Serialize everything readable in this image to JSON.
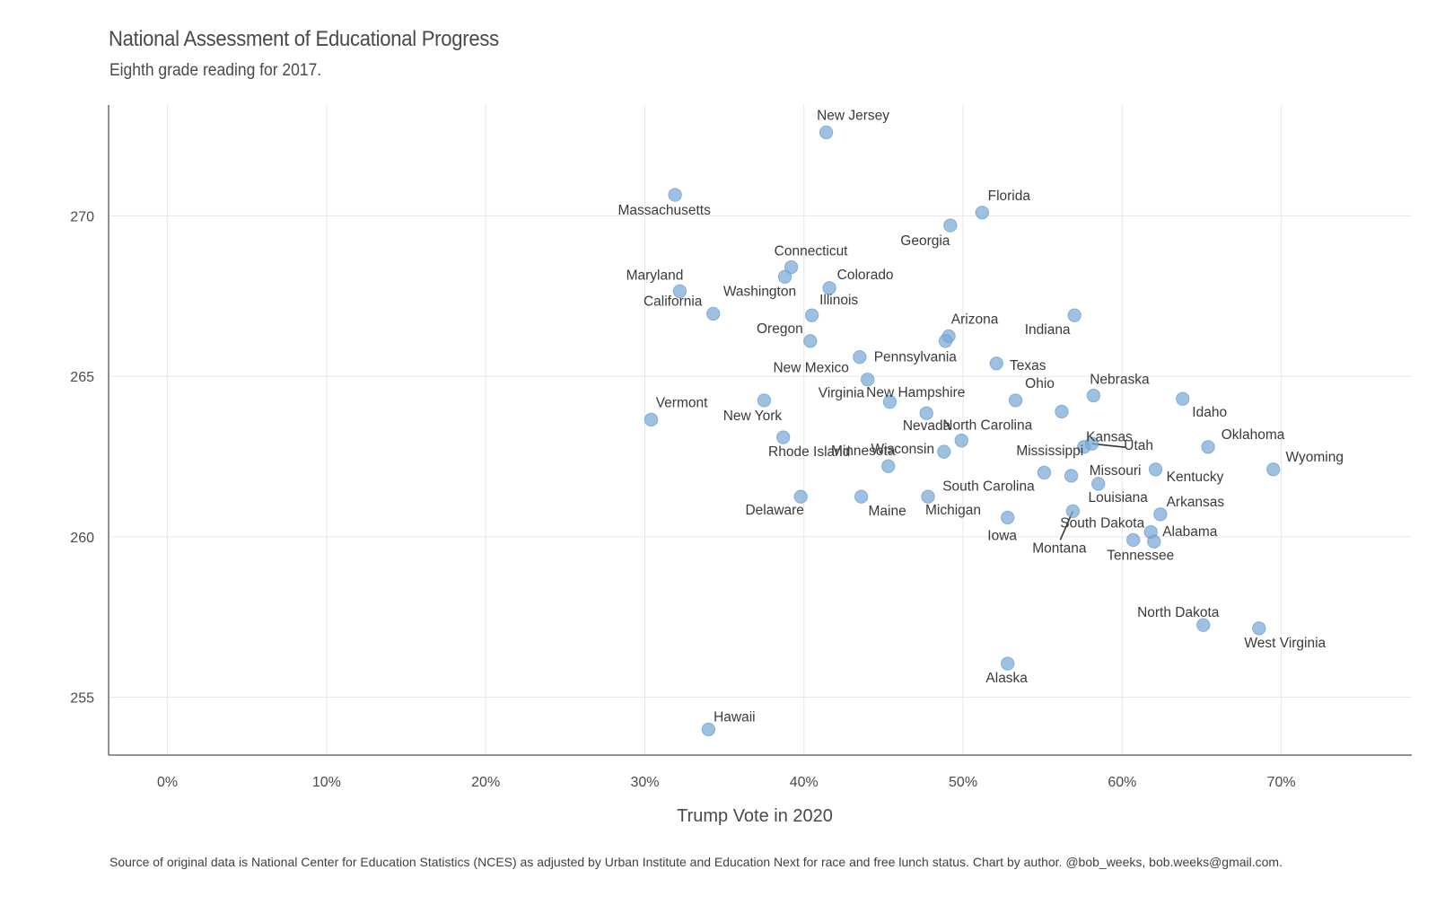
{
  "title": "National Assessment of Educational Progress",
  "subtitle": "Eighth grade reading for 2017.",
  "caption": "Source of original data is National Center for Education Statistics (NCES) as adjusted by Urban Institute and Education Next for race and free lunch status. Chart by author. @bob_weeks, bob.weeks@gmail.com.",
  "colors": {
    "point": "#7aa9d6",
    "point_stroke": "#5b93c8",
    "grid": "#e6e6e6",
    "axis": "#6e6e6e"
  },
  "chart_data": {
    "type": "scatter",
    "title": "National Assessment of Educational Progress",
    "subtitle": "Eighth grade reading for 2017.",
    "xlabel": "Trump Vote in 2020",
    "ylabel": "",
    "xlim": [
      -0.037,
      0.782
    ],
    "ylim": [
      253.2,
      273.45
    ],
    "xticks": [
      0,
      0.1,
      0.2,
      0.3,
      0.4,
      0.5,
      0.6,
      0.7
    ],
    "xtick_labels": [
      "0%",
      "10%",
      "20%",
      "30%",
      "40%",
      "50%",
      "60%",
      "70%"
    ],
    "yticks": [
      255,
      260,
      265,
      270
    ],
    "ytick_labels": [
      "255",
      "260",
      "265",
      "270"
    ],
    "grid": true,
    "legend": "none",
    "points": [
      {
        "label": "New Jersey",
        "x": 0.414,
        "y": 272.6
      },
      {
        "label": "Massachusetts",
        "x": 0.319,
        "y": 270.65
      },
      {
        "label": "Florida",
        "x": 0.512,
        "y": 270.1
      },
      {
        "label": "Georgia",
        "x": 0.492,
        "y": 269.7
      },
      {
        "label": "Connecticut",
        "x": 0.392,
        "y": 268.4
      },
      {
        "label": "Washington",
        "x": 0.388,
        "y": 268.1
      },
      {
        "label": "Maryland",
        "x": 0.322,
        "y": 267.65
      },
      {
        "label": "Colorado",
        "x": 0.416,
        "y": 267.75
      },
      {
        "label": "California",
        "x": 0.343,
        "y": 266.95
      },
      {
        "label": "Illinois",
        "x": 0.405,
        "y": 266.9
      },
      {
        "label": "Indiana",
        "x": 0.57,
        "y": 266.9
      },
      {
        "label": "Arizona",
        "x": 0.491,
        "y": 266.25
      },
      {
        "label": "Oregon",
        "x": 0.404,
        "y": 266.1
      },
      {
        "label": "Nevada",
        "x": 0.489,
        "y": 266.1
      },
      {
        "label": "Pennsylvania",
        "x": 0.435,
        "y": 265.6
      },
      {
        "label": "Texas",
        "x": 0.521,
        "y": 265.4
      },
      {
        "label": "New Mexico",
        "x": 0.44,
        "y": 264.9
      },
      {
        "label": "Nebraska",
        "x": 0.582,
        "y": 264.4
      },
      {
        "label": "Idaho",
        "x": 0.638,
        "y": 264.3
      },
      {
        "label": "Vermont",
        "x": 0.304,
        "y": 263.65
      },
      {
        "label": "New York",
        "x": 0.375,
        "y": 264.25
      },
      {
        "label": "Virginia",
        "x": 0.454,
        "y": 264.2
      },
      {
        "label": "Ohio",
        "x": 0.533,
        "y": 264.25
      },
      {
        "label": "New Hampshire",
        "x": 0.477,
        "y": 263.85
      },
      {
        "label": "Kansas",
        "x": 0.562,
        "y": 263.9
      },
      {
        "label": "Rhode Island",
        "x": 0.387,
        "y": 263.1
      },
      {
        "label": "North Carolina",
        "x": 0.499,
        "y": 263.0
      },
      {
        "label": "Mississippi",
        "x": 0.576,
        "y": 262.8
      },
      {
        "label": "Utah",
        "x": 0.581,
        "y": 262.9
      },
      {
        "label": "Oklahoma",
        "x": 0.654,
        "y": 262.8
      },
      {
        "label": "Wisconsin",
        "x": 0.488,
        "y": 262.65
      },
      {
        "label": "Minnesota",
        "x": 0.453,
        "y": 262.2
      },
      {
        "label": "Kentucky",
        "x": 0.621,
        "y": 262.1
      },
      {
        "label": "Wyoming",
        "x": 0.695,
        "y": 262.1
      },
      {
        "label": "South Carolina",
        "x": 0.551,
        "y": 262.0
      },
      {
        "label": "Missouri",
        "x": 0.568,
        "y": 261.9
      },
      {
        "label": "Louisiana",
        "x": 0.585,
        "y": 261.65
      },
      {
        "label": "Delaware",
        "x": 0.398,
        "y": 261.25
      },
      {
        "label": "Maine",
        "x": 0.436,
        "y": 261.25
      },
      {
        "label": "Michigan",
        "x": 0.478,
        "y": 261.25
      },
      {
        "label": "Montana",
        "x": 0.569,
        "y": 260.8
      },
      {
        "label": "Arkansas",
        "x": 0.624,
        "y": 260.7
      },
      {
        "label": "Iowa",
        "x": 0.528,
        "y": 260.6
      },
      {
        "label": "South Dakota",
        "x": 0.618,
        "y": 260.15
      },
      {
        "label": "Tennessee",
        "x": 0.607,
        "y": 259.9
      },
      {
        "label": "Alabama",
        "x": 0.62,
        "y": 259.85
      },
      {
        "label": "North Dakota",
        "x": 0.651,
        "y": 257.25
      },
      {
        "label": "West Virginia",
        "x": 0.686,
        "y": 257.15
      },
      {
        "label": "Alaska",
        "x": 0.528,
        "y": 256.05
      },
      {
        "label": "Hawaii",
        "x": 0.34,
        "y": 254.0
      }
    ]
  }
}
